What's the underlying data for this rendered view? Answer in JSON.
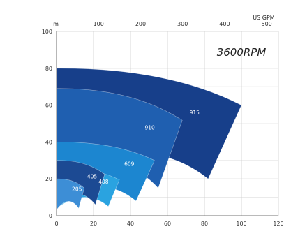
{
  "chart_data": {
    "type": "area",
    "rpm_label": "3600RPM",
    "x_unit_bottom": "",
    "x_unit_top": "US GPM",
    "y_unit": "m",
    "xlim": [
      0,
      120
    ],
    "ylim": [
      0,
      100
    ],
    "top_xlim_gpm": [
      0,
      528
    ],
    "x_ticks_bottom": [
      "0",
      "20",
      "40",
      "60",
      "80",
      "100",
      "120"
    ],
    "x_ticks_top": [
      "100",
      "200",
      "300",
      "400",
      "500"
    ],
    "y_ticks": [
      "0",
      "20",
      "40",
      "60",
      "80",
      "100"
    ],
    "grid": true,
    "series": [
      {
        "name": "915",
        "color": "#173f8a",
        "max_flow": 100,
        "min_flow": 82,
        "max_head": 80,
        "min_head": 20
      },
      {
        "name": "910",
        "color": "#1f5fb0",
        "max_flow": 68,
        "min_flow": 55,
        "max_head": 69,
        "min_head": 15
      },
      {
        "name": "609",
        "color": "#1c86d0",
        "max_flow": 53,
        "min_flow": 43,
        "max_head": 40,
        "min_head": 8
      },
      {
        "name": "408",
        "color": "#2aa3e0",
        "max_flow": 34,
        "min_flow": 28,
        "max_head": 26,
        "min_head": 5
      },
      {
        "name": "405",
        "color": "#1c4a93",
        "max_flow": 26,
        "min_flow": 21,
        "max_head": 30,
        "min_head": 6
      },
      {
        "name": "205",
        "color": "#3d8ed6",
        "max_flow": 15,
        "min_flow": 12,
        "max_head": 20,
        "min_head": 4
      }
    ]
  }
}
